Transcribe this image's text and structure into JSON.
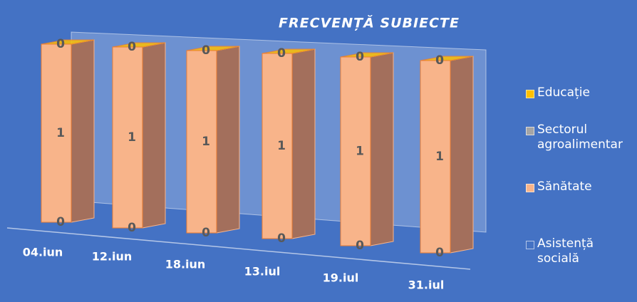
{
  "chart_data": {
    "type": "bar",
    "stacked": true,
    "title": "FRECVENȚĂ SUBIECTE",
    "categories": [
      "04.iun",
      "12.iun",
      "18.iun",
      "13.iul",
      "19.iul",
      "31.iul"
    ],
    "series": [
      {
        "name": "Educație",
        "color": "#ffc000",
        "values": [
          0,
          0,
          0,
          0,
          0,
          0
        ]
      },
      {
        "name": "Sectorul agroalimentar",
        "color": "#a5a5a5",
        "values": [
          0,
          0,
          0,
          0,
          0,
          0
        ]
      },
      {
        "name": "Sănătate",
        "color": "#f8b48a",
        "values": [
          1,
          1,
          1,
          1,
          1,
          1
        ]
      },
      {
        "name": "Asistență socială",
        "color": "#4472c4",
        "values": [
          0,
          0,
          0,
          0,
          0,
          0
        ]
      }
    ],
    "ylim": [
      0,
      1
    ],
    "legend": "right"
  }
}
